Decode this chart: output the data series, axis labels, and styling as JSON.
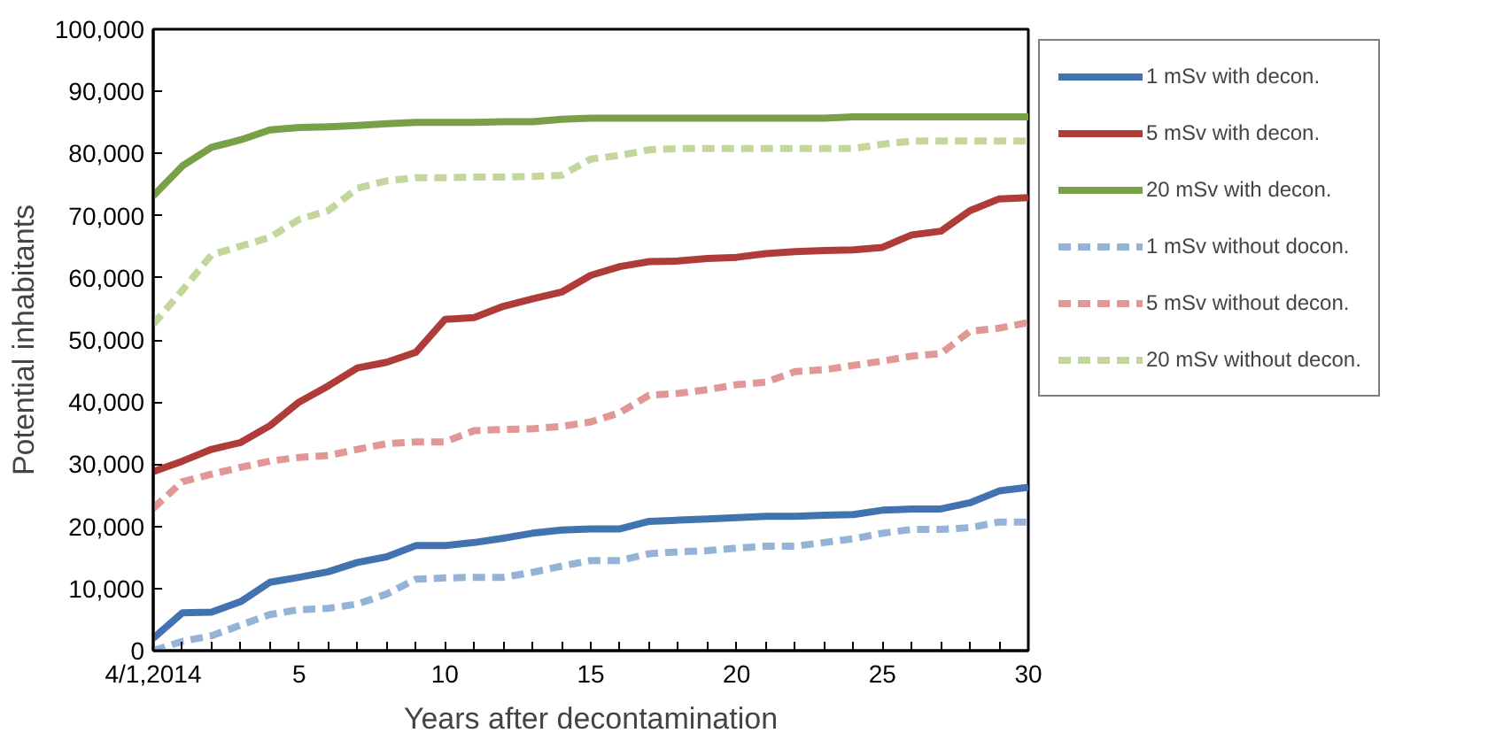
{
  "chart_data": {
    "type": "line",
    "xlabel": "Years after decontamination",
    "ylabel": "Potential inhabitants",
    "x": [
      0,
      1,
      2,
      3,
      4,
      5,
      6,
      7,
      8,
      9,
      10,
      11,
      12,
      13,
      14,
      15,
      16,
      17,
      18,
      19,
      20,
      21,
      22,
      23,
      24,
      25,
      26,
      27,
      28,
      29,
      30
    ],
    "xlim": [
      0,
      30
    ],
    "xticks": [
      {
        "value": 0,
        "label": "4/1,2014"
      },
      {
        "value": 1,
        "label": null
      },
      {
        "value": 2,
        "label": null
      },
      {
        "value": 3,
        "label": null
      },
      {
        "value": 4,
        "label": null
      },
      5,
      {
        "value": 6,
        "label": null
      },
      {
        "value": 7,
        "label": null
      },
      {
        "value": 8,
        "label": null
      },
      {
        "value": 9,
        "label": null
      },
      10,
      {
        "value": 11,
        "label": null
      },
      {
        "value": 12,
        "label": null
      },
      {
        "value": 13,
        "label": null
      },
      {
        "value": 14,
        "label": null
      },
      15,
      {
        "value": 16,
        "label": null
      },
      {
        "value": 17,
        "label": null
      },
      {
        "value": 18,
        "label": null
      },
      {
        "value": 19,
        "label": null
      },
      20,
      {
        "value": 21,
        "label": null
      },
      {
        "value": 22,
        "label": null
      },
      {
        "value": 23,
        "label": null
      },
      {
        "value": 24,
        "label": null
      },
      25,
      {
        "value": 26,
        "label": null
      },
      {
        "value": 27,
        "label": null
      },
      {
        "value": 28,
        "label": null
      },
      {
        "value": 29,
        "label": null
      },
      30
    ],
    "ylim": [
      0,
      100000
    ],
    "yticks": [
      0,
      {
        "value": 10000,
        "label": "10,000"
      },
      {
        "value": 20000,
        "label": "20,000"
      },
      {
        "value": 30000,
        "label": "30,000"
      },
      {
        "value": 40000,
        "label": "40,000"
      },
      {
        "value": 50000,
        "label": "50,000"
      },
      {
        "value": 60000,
        "label": "60,000"
      },
      {
        "value": 70000,
        "label": "70,000"
      },
      {
        "value": 80000,
        "label": "80,000"
      },
      {
        "value": 90000,
        "label": "90,000"
      },
      {
        "value": 100000,
        "label": "100,000"
      }
    ],
    "grid": false,
    "legend": "right",
    "marker": "none",
    "series": [
      {
        "name": "1 mSv with decon.",
        "color": "#4372b0",
        "line_style": "solid",
        "values": [
          2000,
          6100,
          6200,
          7900,
          11000,
          11800,
          12700,
          14200,
          15100,
          16900,
          16900,
          17400,
          18100,
          18900,
          19400,
          19600,
          19600,
          20800,
          21000,
          21200,
          21400,
          21600,
          21600,
          21800,
          21900,
          22600,
          22800,
          22800,
          23800,
          25700,
          26300
        ]
      },
      {
        "name": "5 mSv with decon.",
        "color": "#b03c3a",
        "line_style": "solid",
        "values": [
          28800,
          30500,
          32400,
          33500,
          36200,
          40000,
          42600,
          45500,
          46400,
          48000,
          53300,
          53600,
          55400,
          56600,
          57700,
          60400,
          61800,
          62600,
          62700,
          63100,
          63300,
          63900,
          64200,
          64400,
          64500,
          64900,
          66900,
          67500,
          70800,
          72700,
          72900
        ]
      },
      {
        "name": "20 mSv with decon.",
        "color": "#78a046",
        "line_style": "solid",
        "values": [
          73200,
          78000,
          81000,
          82200,
          83800,
          84200,
          84300,
          84500,
          84800,
          85000,
          85000,
          85000,
          85100,
          85100,
          85500,
          85700,
          85700,
          85700,
          85700,
          85700,
          85700,
          85700,
          85700,
          85700,
          85900,
          85900,
          85900,
          85900,
          85900,
          85900,
          85900
        ]
      },
      {
        "name": "1 mSv without docon.",
        "color": "#95b3d7",
        "line_style": "dashed",
        "values": [
          0,
          1500,
          2400,
          4100,
          5800,
          6600,
          6800,
          7500,
          9100,
          11500,
          11700,
          11800,
          11800,
          12600,
          13600,
          14500,
          14500,
          15600,
          15900,
          16100,
          16500,
          16800,
          16800,
          17400,
          18000,
          18900,
          19500,
          19500,
          19800,
          20700,
          20700
        ]
      },
      {
        "name": "5 mSv without decon.",
        "color": "#e09796",
        "line_style": "dashed",
        "values": [
          22900,
          27200,
          28400,
          29500,
          30500,
          31100,
          31400,
          32400,
          33300,
          33600,
          33600,
          35400,
          35600,
          35700,
          36100,
          36800,
          38300,
          41100,
          41400,
          42000,
          42800,
          43200,
          44900,
          45200,
          45900,
          46600,
          47400,
          47800,
          51400,
          51900,
          52800
        ]
      },
      {
        "name": "20 mSv without decon.",
        "color": "#c3d69b",
        "line_style": "dashed",
        "values": [
          52500,
          58000,
          63700,
          65100,
          66500,
          69400,
          70800,
          74400,
          75600,
          76100,
          76100,
          76200,
          76200,
          76300,
          76500,
          79100,
          79700,
          80600,
          80800,
          80800,
          80800,
          80800,
          80800,
          80800,
          80800,
          81500,
          82000,
          82000,
          82000,
          82000,
          82000
        ]
      }
    ]
  }
}
